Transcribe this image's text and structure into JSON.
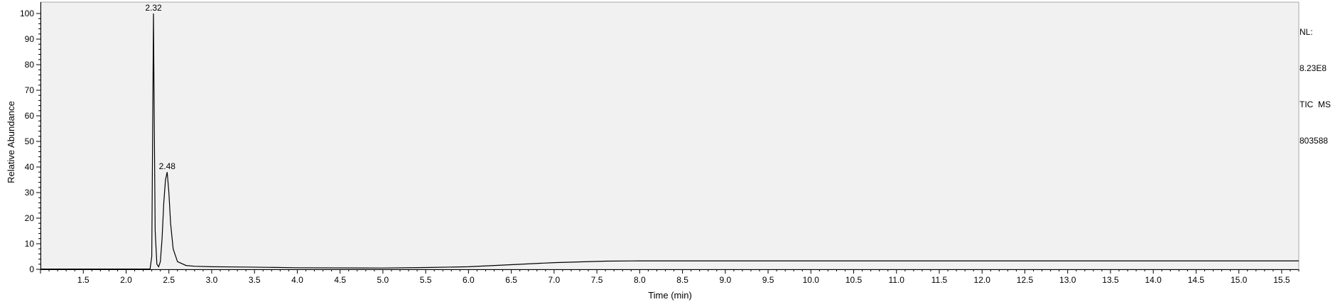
{
  "chart_data": {
    "type": "line",
    "title": "",
    "xlabel": "Time (min)",
    "ylabel": "Relative Abundance",
    "xlim": [
      1.0,
      15.7
    ],
    "ylim": [
      0,
      100
    ],
    "x_ticks": [
      "1.5",
      "2.0",
      "2.5",
      "3.0",
      "3.5",
      "4.0",
      "4.5",
      "5.0",
      "5.5",
      "6.0",
      "6.5",
      "7.0",
      "7.5",
      "8.0",
      "8.5",
      "9.0",
      "9.5",
      "10.0",
      "10.5",
      "11.0",
      "11.5",
      "12.0",
      "12.5",
      "13.0",
      "13.5",
      "14.0",
      "14.5",
      "15.0",
      "15.5"
    ],
    "y_ticks": [
      "0",
      "10",
      "20",
      "30",
      "40",
      "50",
      "60",
      "70",
      "80",
      "90",
      "100"
    ],
    "peak_labels": [
      {
        "x": 2.32,
        "y": 100,
        "text": "2.32"
      },
      {
        "x": 2.48,
        "y": 38,
        "text": "2.48"
      }
    ],
    "series": [
      {
        "x": [
          1.0,
          2.28,
          2.3,
          2.31,
          2.32,
          2.33,
          2.34,
          2.36,
          2.38,
          2.4,
          2.42,
          2.44,
          2.46,
          2.48,
          2.5,
          2.52,
          2.55,
          2.6,
          2.7,
          2.8,
          3.0,
          3.4,
          4.0,
          5.0,
          5.5,
          6.0,
          6.5,
          7.0,
          7.6,
          8.0,
          10.0,
          12.0,
          14.0,
          15.7
        ],
        "y": [
          0.1,
          0.1,
          5,
          52,
          100,
          55,
          15,
          2,
          1,
          3,
          12,
          26,
          35,
          38,
          30,
          18,
          8,
          3,
          1.5,
          1.2,
          1.0,
          0.9,
          0.6,
          0.5,
          0.7,
          1.0,
          1.8,
          2.6,
          3.2,
          3.3,
          3.3,
          3.3,
          3.3,
          3.3
        ]
      }
    ]
  },
  "info": {
    "nl_label": "NL:",
    "nl_value": "8.23E8",
    "trace": "TIC  MS",
    "sample": "803588"
  }
}
